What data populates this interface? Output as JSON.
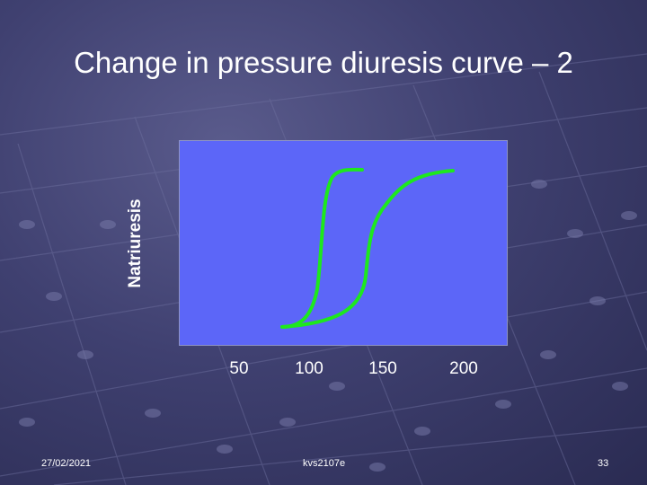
{
  "slide": {
    "title": "Change in pressure diuresis curve – 2",
    "date": "27/02/2021",
    "author": "kvs2107e",
    "page_number": "33"
  },
  "diagram": {
    "y_axis_label": "Natriuresis",
    "x_ticks": [
      "50",
      "100",
      "150",
      "200"
    ],
    "plot_color": "#5c66f8",
    "curve_color": "#1ee81e"
  }
}
